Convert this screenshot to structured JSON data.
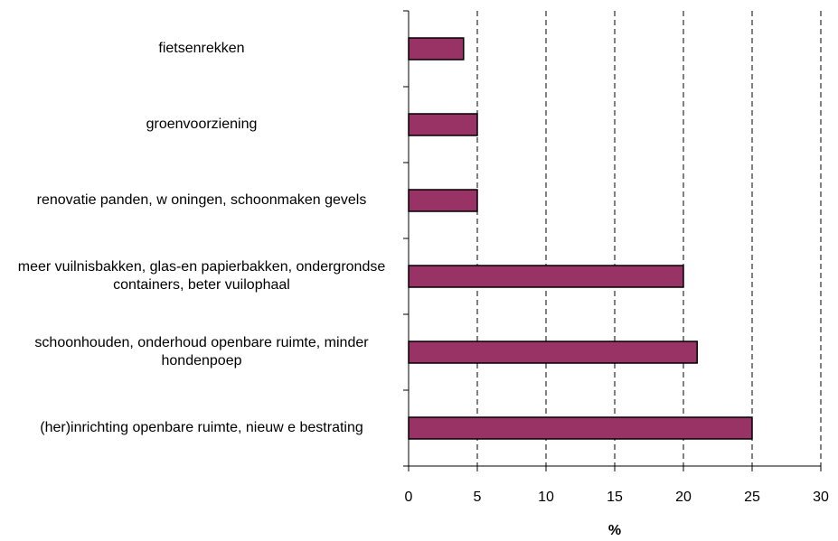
{
  "chart_data": {
    "type": "hbar",
    "categories": [
      "fietsenrekken",
      "groenvoorziening",
      "renovatie panden, w oningen, schoonmaken gevels",
      "meer vuilnisbakken, glas-en papierbakken, ondergrondse containers, beter vuilophaal",
      "schoonhouden, onderhoud openbare ruimte, minder hondenpoep",
      "(her)inrichting openbare ruimte, nieuw e bestrating"
    ],
    "values": [
      4,
      5,
      5,
      20,
      21,
      25
    ],
    "color": "#993366",
    "x_label": "%",
    "xlim": [
      0,
      30
    ],
    "xticks": [
      0,
      5,
      10,
      15,
      20,
      25,
      30
    ],
    "grid": true
  }
}
